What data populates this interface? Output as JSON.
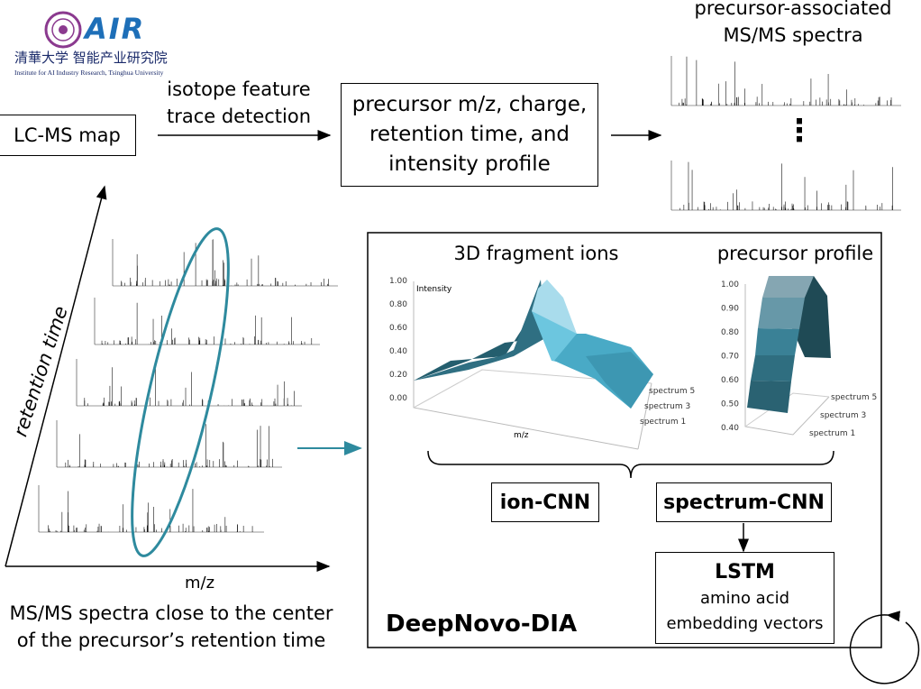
{
  "logo": {
    "brand": "AIR",
    "chinese": "清華大学 智能产业研究院",
    "english": "Institute for AI Industry Research, Tsinghua University",
    "colors": {
      "seal": "#8b3a8f",
      "brand": "#1e6fb8"
    }
  },
  "top": {
    "spectra_title_1": "precursor-associated",
    "spectra_title_2": "MS/MS spectra",
    "detection_1": "isotope feature",
    "detection_2": "trace detection",
    "lcms": "LC-MS map",
    "precursor_1": "precursor m/z, charge,",
    "precursor_2": "retention time, and",
    "precursor_3": "intensity profile",
    "ellipsis": "⋮"
  },
  "left": {
    "y_axis": "retention time",
    "x_axis": "m/z",
    "caption_1": "MS/MS spectra close to the center",
    "caption_2": "of the precursor’s retention time",
    "ellipse_color": "#2e8a9e"
  },
  "model": {
    "fragment_title": "3D fragment ions",
    "profile_title": "precursor profile",
    "fragment_chart": {
      "z_label": "Intensity",
      "x_label": "m/z",
      "z_ticks": [
        "1.00",
        "0.80",
        "0.60",
        "0.40",
        "0.20",
        "0.00"
      ],
      "depth_ticks": [
        "spectrum 5",
        "spectrum 3",
        "spectrum 1"
      ]
    },
    "profile_chart": {
      "z_ticks": [
        "1.00",
        "0.90",
        "0.80",
        "0.70",
        "0.60",
        "0.50",
        "0.40"
      ],
      "depth_ticks": [
        "spectrum 5",
        "spectrum 3",
        "spectrum 1"
      ]
    },
    "ion_cnn": "ion-CNN",
    "spectrum_cnn": "spectrum-CNN",
    "lstm": "LSTM",
    "lstm_sub_1": "amino acid",
    "lstm_sub_2": "embedding vectors",
    "name": "DeepNovo-DIA",
    "surface_color": "#4aaec9"
  }
}
